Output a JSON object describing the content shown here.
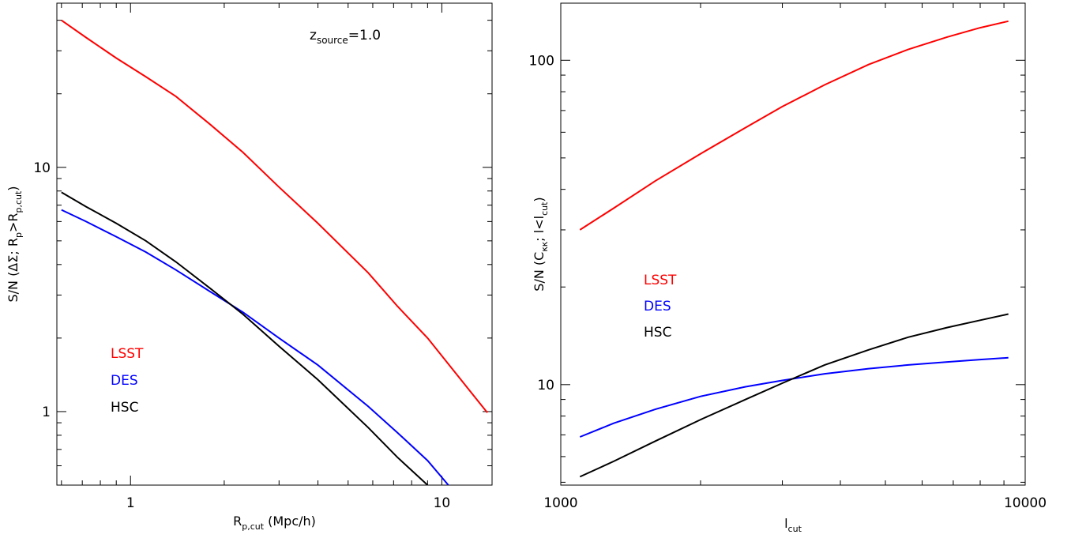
{
  "chart_data": [
    {
      "type": "line",
      "title": "",
      "annotation": {
        "main": "z",
        "sub": "source",
        "tail": "=1.0"
      },
      "xlabel": {
        "main": "R",
        "sub": "p,cut",
        "tail": " (Mpc/h)"
      },
      "ylabel": "S/N (ΔΣ; R_p>R_p,cut)",
      "xscale": "log",
      "yscale": "log",
      "xlim": [
        0.58,
        14.5
      ],
      "ylim": [
        0.5,
        47
      ],
      "xticks": [
        1,
        10
      ],
      "yticks": [
        1,
        10
      ],
      "grid": false,
      "legend_position": "lower-left",
      "series": [
        {
          "name": "LSST",
          "color": "#ff0000",
          "x": [
            0.6,
            0.72,
            0.9,
            1.12,
            1.4,
            1.8,
            2.3,
            3.0,
            4.0,
            5.8,
            7.2,
            9.0,
            14.0
          ],
          "y": [
            40,
            34,
            28,
            23.5,
            19.5,
            15,
            11.5,
            8.3,
            5.9,
            3.7,
            2.7,
            2.0,
            0.99
          ]
        },
        {
          "name": "DES",
          "color": "#0000ff",
          "x": [
            0.6,
            0.72,
            0.9,
            1.12,
            1.4,
            1.8,
            2.3,
            3.0,
            4.0,
            5.8,
            7.2,
            9.0,
            10.5
          ],
          "y": [
            6.7,
            6.0,
            5.2,
            4.5,
            3.8,
            3.1,
            2.55,
            2.0,
            1.55,
            1.05,
            0.82,
            0.63,
            0.5
          ]
        },
        {
          "name": "HSC",
          "color": "#000000",
          "x": [
            0.6,
            0.72,
            0.9,
            1.12,
            1.4,
            1.8,
            2.3,
            3.0,
            4.0,
            5.8,
            7.2,
            9.0
          ],
          "y": [
            7.9,
            6.9,
            5.9,
            5.0,
            4.1,
            3.2,
            2.5,
            1.85,
            1.35,
            0.86,
            0.65,
            0.5
          ]
        }
      ]
    },
    {
      "type": "line",
      "title": "",
      "xlabel": {
        "main": "l",
        "sub": "cut",
        "tail": ""
      },
      "ylabel": "S/N (C_κκ; l<l_cut)",
      "xscale": "log",
      "yscale": "log",
      "xlim": [
        1000,
        10000
      ],
      "ylim": [
        4.9,
        150
      ],
      "xticks": [
        1000,
        10000
      ],
      "yticks": [
        10,
        100
      ],
      "grid": false,
      "legend_position": "center-left",
      "series": [
        {
          "name": "LSST",
          "color": "#ff0000",
          "x": [
            1100,
            1300,
            1600,
            2000,
            2500,
            3000,
            3700,
            4600,
            5600,
            6800,
            8000,
            9200
          ],
          "y": [
            30,
            35,
            42.5,
            51.5,
            62,
            72,
            84,
            97,
            108,
            118,
            126,
            132
          ]
        },
        {
          "name": "DES",
          "color": "#0000ff",
          "x": [
            1100,
            1300,
            1600,
            2000,
            2500,
            3000,
            3700,
            4600,
            5600,
            6800,
            8000,
            9200
          ],
          "y": [
            6.9,
            7.6,
            8.4,
            9.2,
            9.85,
            10.3,
            10.8,
            11.2,
            11.5,
            11.75,
            11.95,
            12.1
          ]
        },
        {
          "name": "HSC",
          "color": "#000000",
          "x": [
            1100,
            1300,
            1600,
            2000,
            2500,
            3000,
            3700,
            4600,
            5600,
            6800,
            8000,
            9200
          ],
          "y": [
            5.2,
            5.8,
            6.7,
            7.8,
            9.0,
            10.1,
            11.5,
            12.8,
            14.0,
            15.0,
            15.8,
            16.5
          ]
        }
      ]
    }
  ]
}
